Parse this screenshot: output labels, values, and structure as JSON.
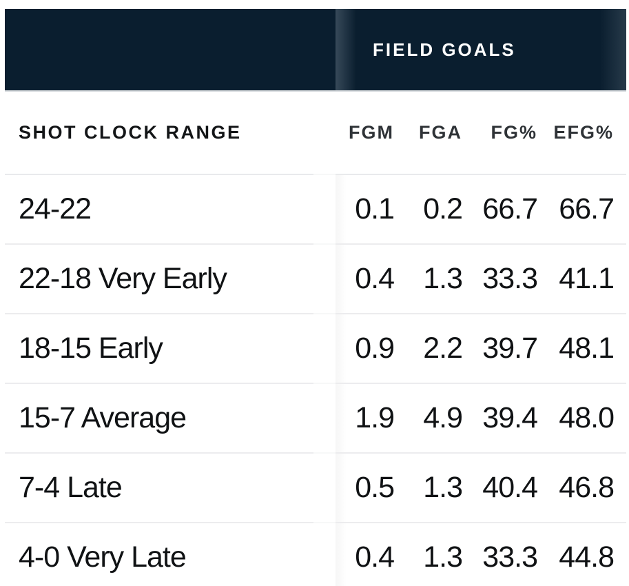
{
  "table": {
    "group_header": "FIELD GOALS",
    "row_header": "SHOT CLOCK RANGE",
    "stat_columns": [
      "FGM",
      "FGA",
      "FG%",
      "EFG%"
    ],
    "rows": [
      {
        "range": "24-22",
        "fgm": "0.1",
        "fga": "0.2",
        "fg_pct": "66.7",
        "efg_pct": "66.7"
      },
      {
        "range": "22-18 Very Early",
        "fgm": "0.4",
        "fga": "1.3",
        "fg_pct": "33.3",
        "efg_pct": "41.1"
      },
      {
        "range": "18-15 Early",
        "fgm": "0.9",
        "fga": "2.2",
        "fg_pct": "39.7",
        "efg_pct": "48.1"
      },
      {
        "range": "15-7 Average",
        "fgm": "1.9",
        "fga": "4.9",
        "fg_pct": "39.4",
        "efg_pct": "48.0"
      },
      {
        "range": "7-4 Late",
        "fgm": "0.5",
        "fga": "1.3",
        "fg_pct": "40.4",
        "efg_pct": "46.8"
      },
      {
        "range": "4-0 Very Late",
        "fgm": "0.4",
        "fga": "1.3",
        "fg_pct": "33.3",
        "efg_pct": "44.8"
      }
    ]
  },
  "colors": {
    "header_bg": "#0a1e2f",
    "divider": "#ececee",
    "header_shadow": "#d8dcdf",
    "body_text": "#101214",
    "col_header_text": "#2f3337"
  }
}
